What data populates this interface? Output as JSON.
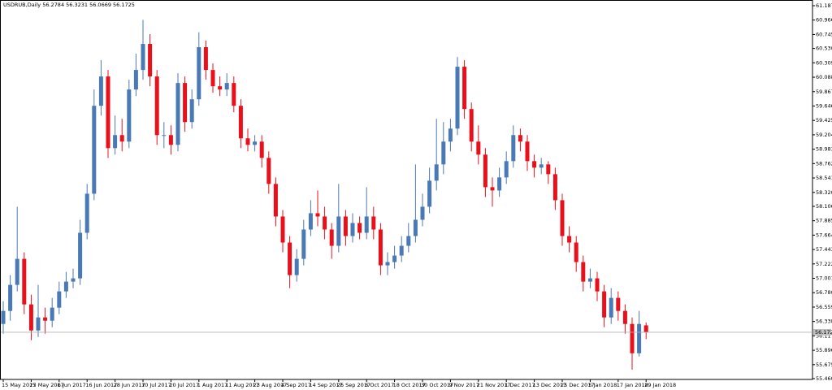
{
  "chart_data": {
    "type": "candlestick",
    "title": "USDRUB,Daily  56.2784 56.3231 56.0669 56.1725",
    "up_color": "#4a7ab5",
    "down_color": "#e8101a",
    "open": [
      56.3,
      56.5,
      56.9,
      57.3,
      56.6,
      56.2,
      56.4,
      56.35,
      56.55,
      56.8,
      56.95,
      57.0,
      57.7,
      58.3,
      59.65,
      60.1,
      59.0,
      59.2,
      59.1,
      59.9,
      60.2,
      60.6,
      60.1,
      59.2,
      59.2,
      59.05,
      60.0,
      59.4,
      59.75,
      60.55,
      60.2,
      59.95,
      59.9,
      60.0,
      59.65,
      59.15,
      59.05,
      59.1,
      58.85,
      58.45,
      57.95,
      57.55,
      57.05,
      57.3,
      57.75,
      58.0,
      57.95,
      57.75,
      57.5,
      57.95,
      57.65,
      57.85,
      57.7,
      57.95,
      57.75,
      57.2,
      57.25,
      57.35,
      57.5,
      57.65,
      57.9,
      58.1,
      58.5,
      58.75,
      59.1,
      59.3,
      60.25,
      59.6,
      59.1,
      58.9,
      58.4,
      58.35,
      58.55,
      58.8,
      59.2,
      59.1,
      58.8,
      58.7,
      58.75,
      58.6,
      58.2,
      57.65,
      57.55,
      57.25,
      56.95,
      57.0,
      56.8,
      56.4,
      56.7,
      56.5,
      56.3,
      55.85,
      56.2784
    ],
    "high": [
      56.65,
      57.05,
      58.1,
      57.4,
      56.75,
      56.9,
      56.55,
      56.7,
      56.95,
      57.1,
      57.15,
      57.9,
      58.45,
      59.9,
      60.35,
      60.2,
      59.5,
      59.45,
      60.05,
      60.45,
      60.97,
      60.75,
      60.2,
      59.4,
      59.35,
      60.15,
      60.1,
      59.9,
      60.78,
      60.65,
      60.3,
      60.1,
      60.15,
      60.1,
      59.75,
      59.3,
      59.2,
      59.2,
      58.95,
      58.55,
      58.05,
      57.65,
      57.45,
      57.9,
      58.2,
      58.35,
      58.1,
      57.85,
      58.45,
      58.05,
      58.0,
      57.95,
      58.4,
      58.1,
      57.85,
      57.4,
      57.5,
      57.65,
      57.85,
      58.75,
      58.3,
      58.7,
      59.45,
      59.4,
      59.45,
      60.4,
      60.35,
      59.7,
      59.35,
      59.0,
      58.55,
      58.7,
      58.95,
      59.35,
      59.3,
      59.2,
      58.9,
      58.85,
      58.8,
      58.7,
      58.3,
      57.8,
      57.65,
      57.35,
      57.15,
      57.1,
      56.9,
      56.85,
      56.8,
      56.6,
      56.4,
      56.5,
      56.3231
    ],
    "low": [
      56.15,
      56.35,
      56.8,
      56.45,
      56.05,
      56.1,
      56.15,
      56.25,
      56.45,
      56.7,
      56.85,
      56.9,
      57.6,
      58.2,
      59.5,
      58.85,
      58.9,
      58.95,
      59.0,
      59.8,
      60.05,
      59.95,
      59.05,
      59.0,
      58.9,
      58.95,
      59.25,
      59.3,
      59.65,
      60.05,
      59.85,
      59.8,
      59.8,
      59.55,
      59.0,
      58.95,
      58.95,
      58.7,
      58.3,
      57.8,
      57.4,
      56.85,
      56.95,
      57.2,
      57.65,
      57.8,
      57.6,
      57.3,
      57.4,
      57.5,
      57.55,
      57.6,
      57.6,
      57.6,
      57.05,
      57.05,
      57.15,
      57.25,
      57.4,
      57.55,
      57.8,
      58.0,
      58.35,
      58.6,
      58.95,
      59.2,
      59.45,
      58.95,
      58.75,
      58.25,
      58.1,
      58.25,
      58.45,
      58.7,
      58.95,
      58.65,
      58.55,
      58.6,
      58.45,
      58.05,
      57.5,
      57.4,
      57.1,
      56.8,
      56.85,
      56.65,
      56.25,
      56.3,
      56.35,
      56.15,
      55.6,
      55.8,
      56.0669
    ],
    "close": [
      56.5,
      56.9,
      57.3,
      56.6,
      56.2,
      56.4,
      56.35,
      56.55,
      56.8,
      56.95,
      57.0,
      57.7,
      58.3,
      59.65,
      60.1,
      59.0,
      59.2,
      59.1,
      59.9,
      60.2,
      60.6,
      60.1,
      59.2,
      59.2,
      59.05,
      60.0,
      59.4,
      59.75,
      60.55,
      60.2,
      59.95,
      59.9,
      60.0,
      59.65,
      59.15,
      59.05,
      59.1,
      58.85,
      58.45,
      57.95,
      57.55,
      57.05,
      57.3,
      57.75,
      58.0,
      57.95,
      57.75,
      57.5,
      57.95,
      57.65,
      57.85,
      57.7,
      57.95,
      57.75,
      57.2,
      57.25,
      57.35,
      57.5,
      57.65,
      57.9,
      58.1,
      58.5,
      58.75,
      59.1,
      59.3,
      60.25,
      59.6,
      59.1,
      58.9,
      58.4,
      58.35,
      58.55,
      58.8,
      59.2,
      59.1,
      58.8,
      58.7,
      58.75,
      58.6,
      58.2,
      57.65,
      57.55,
      57.25,
      56.95,
      57.0,
      56.8,
      56.4,
      56.7,
      56.5,
      56.3,
      55.85,
      56.3,
      56.1725
    ],
    "ylim": [
      55.4605,
      61.187
    ],
    "yticks": [
      {
        "value": 61.187,
        "label": "61.1870"
      },
      {
        "value": 60.966,
        "label": "60.9660"
      },
      {
        "value": 60.745,
        "label": "60.7450"
      },
      {
        "value": 60.5305,
        "label": "60.5305"
      },
      {
        "value": 60.3095,
        "label": "60.3095"
      },
      {
        "value": 60.0885,
        "label": "60.0885"
      },
      {
        "value": 59.8675,
        "label": "59.8675"
      },
      {
        "value": 59.6465,
        "label": "59.6465"
      },
      {
        "value": 59.4255,
        "label": "59.4255"
      },
      {
        "value": 59.2045,
        "label": "59.2045"
      },
      {
        "value": 58.9835,
        "label": "58.9835"
      },
      {
        "value": 58.7625,
        "label": "58.7625"
      },
      {
        "value": 58.5415,
        "label": "58.5415"
      },
      {
        "value": 58.32,
        "label": "58.3200"
      },
      {
        "value": 58.106,
        "label": "58.1060"
      },
      {
        "value": 57.885,
        "label": "57.8850"
      },
      {
        "value": 57.664,
        "label": "57.6640"
      },
      {
        "value": 57.443,
        "label": "57.4430"
      },
      {
        "value": 57.222,
        "label": "57.2220"
      },
      {
        "value": 57.001,
        "label": "57.0010"
      },
      {
        "value": 56.78,
        "label": "56.7800"
      },
      {
        "value": 56.559,
        "label": "56.5590"
      },
      {
        "value": 56.338,
        "label": "56.3380"
      },
      {
        "value": 56.117,
        "label": "56.1170"
      },
      {
        "value": 55.896,
        "label": "55.8960"
      },
      {
        "value": 55.675,
        "label": "55.6750"
      },
      {
        "value": 55.4605,
        "label": "55.4605"
      }
    ],
    "xticks": [
      {
        "value": 0,
        "label": "15 May 2017"
      },
      {
        "value": 4,
        "label": "25 May 2017"
      },
      {
        "value": 8,
        "label": "6 Jun 2017"
      },
      {
        "value": 12,
        "label": "16 Jun 2017"
      },
      {
        "value": 16,
        "label": "28 Jun 2017"
      },
      {
        "value": 20,
        "label": "10 Jul 2017"
      },
      {
        "value": 24,
        "label": "20 Jul 2017"
      },
      {
        "value": 28,
        "label": "1 Aug 2017"
      },
      {
        "value": 32,
        "label": "11 Aug 2017"
      },
      {
        "value": 36,
        "label": "23 Aug 2017"
      },
      {
        "value": 40,
        "label": "4 Sep 2017"
      },
      {
        "value": 44,
        "label": "14 Sep 2017"
      },
      {
        "value": 48,
        "label": "26 Sep 2017"
      },
      {
        "value": 52,
        "label": "6 Oct 2017"
      },
      {
        "value": 56,
        "label": "18 Oct 2017"
      },
      {
        "value": 60,
        "label": "30 Oct 2017"
      },
      {
        "value": 64,
        "label": "9 Nov 2017"
      },
      {
        "value": 68,
        "label": "21 Nov 2017"
      },
      {
        "value": 72,
        "label": "1 Dec 2017"
      },
      {
        "value": 76,
        "label": "13 Dec 2017"
      },
      {
        "value": 80,
        "label": "25 Dec 2017"
      },
      {
        "value": 84,
        "label": "5 Jan 2018"
      },
      {
        "value": 88,
        "label": "17 Jan 2018"
      },
      {
        "value": 92,
        "label": "29 Jan 2018"
      }
    ]
  }
}
